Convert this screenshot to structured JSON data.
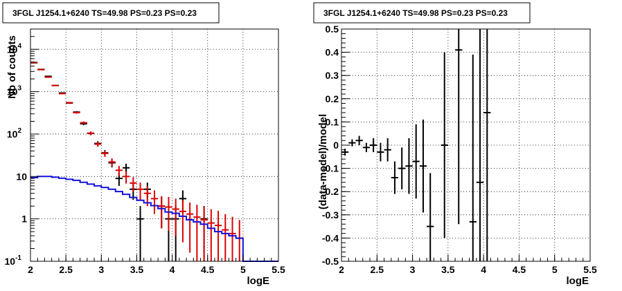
{
  "chart_data": [
    {
      "type": "histogram",
      "title": "3FGL J1254.1+6240 TS=49.98 PS=0.23 PS=0.23",
      "xlabel": "logE",
      "ylabel": "Nb of counts",
      "xlim": [
        2,
        5.5
      ],
      "ylim": [
        0.1,
        30000
      ],
      "y_scale": "log",
      "grid": true,
      "x_ticks": [
        "2",
        "2.5",
        "3",
        "3.5",
        "4",
        "4.5",
        "5",
        "5.5"
      ],
      "y_ticks": [
        {
          "value": 0.1,
          "label": "10",
          "exp": "-1"
        },
        {
          "value": 1,
          "label": "1",
          "exp": ""
        },
        {
          "value": 10,
          "label": "10",
          "exp": ""
        },
        {
          "value": 100,
          "label": "10",
          "exp": "2"
        },
        {
          "value": 1000,
          "label": "10",
          "exp": "3"
        },
        {
          "value": 10000,
          "label": "10",
          "exp": "4"
        }
      ],
      "bin_width": 0.1,
      "series": [
        {
          "color": "#000000",
          "style": "points",
          "x": [
            2.05,
            2.15,
            2.25,
            2.35,
            2.45,
            2.55,
            2.65,
            2.75,
            2.85,
            2.95,
            3.05,
            3.15,
            3.25,
            3.35,
            3.45,
            3.55,
            3.65,
            3.75,
            3.85,
            3.95,
            4.05,
            4.15,
            4.25,
            4.35,
            4.45,
            4.55,
            4.65,
            4.75,
            4.85,
            4.95
          ],
          "y": [
            4800,
            3350,
            2300,
            1400,
            930,
            540,
            330,
            175,
            104,
            60,
            36,
            21,
            9,
            16,
            5,
            1,
            5,
            0,
            2,
            1,
            1,
            3,
            0,
            0,
            1,
            0,
            0,
            0,
            0,
            0
          ],
          "err": [
            69,
            58,
            48,
            37,
            30,
            23,
            18,
            13,
            10,
            7.7,
            6,
            4.6,
            3,
            4,
            2.2,
            1,
            2.2,
            0,
            1.4,
            1,
            1,
            1.7,
            0,
            0,
            1,
            0,
            0,
            0,
            0,
            0
          ]
        },
        {
          "color": "#dd0000",
          "style": "points",
          "x": [
            2.05,
            2.15,
            2.25,
            2.35,
            2.45,
            2.55,
            2.65,
            2.75,
            2.85,
            2.95,
            3.05,
            3.15,
            3.25,
            3.35,
            3.45,
            3.55,
            3.65,
            3.75,
            3.85,
            3.95,
            4.05,
            4.15,
            4.25,
            4.35,
            4.45,
            4.55,
            4.65,
            4.75,
            4.85,
            4.95
          ],
          "y": [
            4900,
            3300,
            2200,
            1400,
            900,
            550,
            320,
            185,
            105,
            58,
            35,
            22,
            14,
            10,
            7,
            5,
            4,
            3,
            2,
            1.9,
            1.7,
            1.5,
            1.3,
            1.1,
            0.95,
            0.8,
            0.7,
            0.55,
            0.45,
            0.35
          ],
          "err": [
            70,
            57,
            47,
            37,
            30,
            23,
            18,
            13.6,
            10,
            7.6,
            5.9,
            4.7,
            3.7,
            3.2,
            2.6,
            2.2,
            2,
            1.7,
            1.4,
            1.38,
            1.3,
            1.22,
            1.14,
            1.05,
            0.97,
            0.89,
            0.84,
            0.74,
            0.67,
            0.59
          ]
        },
        {
          "color": "#1010dd",
          "style": "step",
          "edges_start": 2.0,
          "y": [
            9.4,
            10.0,
            10.0,
            9.6,
            9.1,
            8.6,
            8.1,
            7.3,
            6.6,
            6.0,
            5.5,
            5.0,
            4.4,
            3.8,
            3.2,
            2.75,
            2.4,
            2.05,
            1.75,
            1.45,
            1.35,
            1.15,
            0.95,
            0.85,
            0.75,
            0.6,
            0.5,
            0.45,
            0.4,
            0.35,
            0.1,
            0.1,
            0.1,
            0.1,
            0.1
          ]
        }
      ]
    },
    {
      "type": "scatter",
      "title": "3FGL J1254.1+6240 TS=49.98 PS=0.23 PS=0.23",
      "xlabel": "logE",
      "ylabel": "(data-model)/model",
      "xlim": [
        2,
        5.5
      ],
      "ylim": [
        -0.5,
        0.5
      ],
      "grid": true,
      "x_ticks": [
        "2",
        "2.5",
        "3",
        "3.5",
        "4",
        "4.5",
        "5",
        "5.5"
      ],
      "y_ticks": [
        "-0.5",
        "-0.4",
        "-0.3",
        "-0.2",
        "-0.1",
        "0",
        "0.1",
        "0.2",
        "0.3",
        "0.4",
        "0.5"
      ],
      "bin_width": 0.1,
      "series": [
        {
          "color": "#000000",
          "x": [
            2.05,
            2.15,
            2.25,
            2.35,
            2.45,
            2.55,
            2.65,
            2.75,
            2.85,
            2.95,
            3.05,
            3.15,
            3.25,
            3.45,
            3.65,
            3.85,
            3.95,
            4.05
          ],
          "y": [
            -0.03,
            0.01,
            0.02,
            -0.01,
            0.0,
            -0.03,
            -0.02,
            -0.14,
            -0.1,
            -0.09,
            -0.07,
            -0.09,
            -0.35,
            0.0,
            0.41,
            -0.33,
            -0.16,
            0.14
          ],
          "err": [
            0.015,
            0.015,
            0.02,
            0.02,
            0.03,
            0.04,
            0.05,
            0.07,
            0.09,
            0.12,
            0.16,
            0.2,
            0.23,
            0.4,
            0.75,
            0.72,
            0.95,
            1.0
          ]
        }
      ]
    }
  ]
}
